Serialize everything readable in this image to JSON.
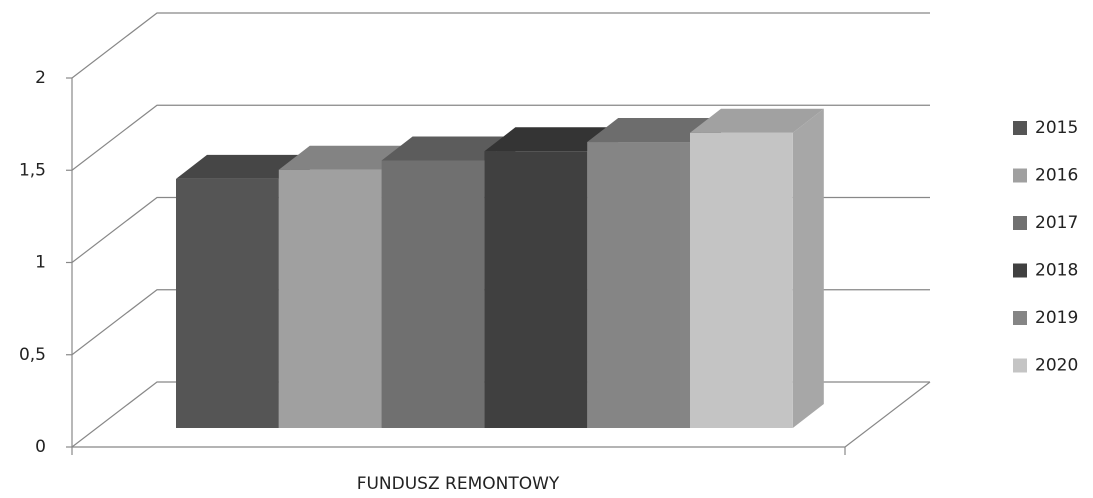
{
  "chart_data": {
    "type": "bar3d",
    "categories": [
      "FUNDUSZ REMONTOWY"
    ],
    "series": [
      {
        "name": "2015",
        "color": "#555555",
        "values": [
          1.35
        ]
      },
      {
        "name": "2016",
        "color": "#a0a0a0",
        "values": [
          1.4
        ]
      },
      {
        "name": "2017",
        "color": "#707070",
        "values": [
          1.45
        ]
      },
      {
        "name": "2018",
        "color": "#404040",
        "values": [
          1.5
        ]
      },
      {
        "name": "2019",
        "color": "#858585",
        "values": [
          1.55
        ]
      },
      {
        "name": "2020",
        "color": "#c4c4c4",
        "values": [
          1.6
        ]
      }
    ],
    "ylim": [
      0,
      2
    ],
    "yticks": [
      0,
      {
        "value": 0.5,
        "label": "0,5"
      },
      1,
      {
        "value": 1.5,
        "label": "1,5"
      },
      2
    ],
    "grid": true,
    "legend": "right"
  }
}
